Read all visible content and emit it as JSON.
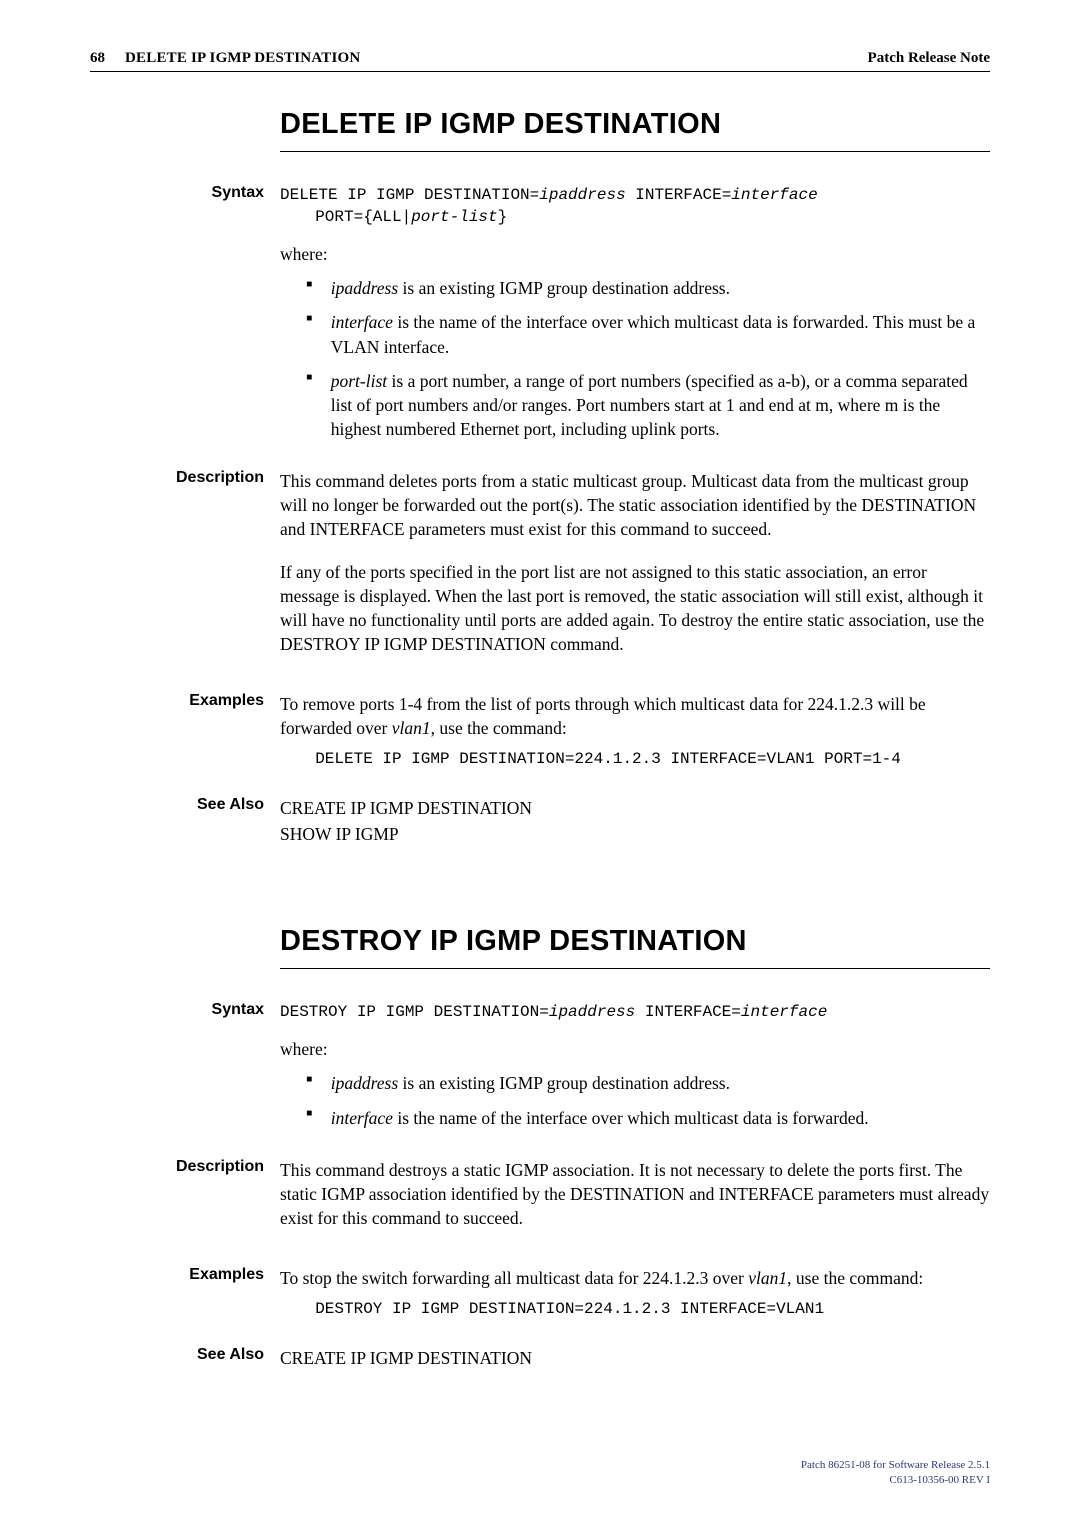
{
  "header": {
    "page_number": "68",
    "title_small": "DELETE IP IGMP DESTINATION",
    "right": "Patch Release Note"
  },
  "sections": [
    {
      "title": "DELETE IP IGMP DESTINATION",
      "syntax": {
        "label": "Syntax",
        "line1_a": "DELETE IP IGMP DESTINATION=",
        "line1_b": "ipaddress",
        "line1_c": " INTERFACE=",
        "line1_d": "interface",
        "line2_a": "PORT={ALL|",
        "line2_b": "port-list",
        "line2_c": "}",
        "where": "where:",
        "bullets": [
          {
            "i": "ipaddress",
            "t": " is an existing IGMP group destination address."
          },
          {
            "i": "interface",
            "t": " is the name of the interface over which multicast data is forwarded. This must be a VLAN interface."
          },
          {
            "i": "port-list",
            "t": " is a port number, a range of port numbers (specified as a-b), or a comma separated list of port numbers and/or ranges. Port numbers start at 1 and end at m, where m is the highest numbered Ethernet port, including uplink ports."
          }
        ]
      },
      "description": {
        "label": "Description",
        "paras": [
          "This command deletes ports from a static multicast group. Multicast data from the multicast group will no longer be forwarded out the port(s). The static association identified by the DESTINATION and INTERFACE parameters must exist for this command to succeed.",
          "If any of the ports specified in the port list are not assigned to this static association, an error message is displayed. When the last port is removed, the static association will still exist, although it will have no functionality until ports are added again. To destroy the entire static association, use the DESTROY IP IGMP DESTINATION command."
        ]
      },
      "examples": {
        "label": "Examples",
        "intro_a": "To remove ports 1-4 from the list of ports through which multicast data for 224.1.2.3 will be forwarded over ",
        "intro_i": "vlan1",
        "intro_b": ", use the command:",
        "code": "DELETE IP IGMP DESTINATION=224.1.2.3 INTERFACE=VLAN1 PORT=1-4"
      },
      "see_also": {
        "label": "See Also",
        "lines": [
          "CREATE IP IGMP DESTINATION",
          "SHOW IP IGMP"
        ]
      }
    },
    {
      "title": "DESTROY IP IGMP DESTINATION",
      "syntax": {
        "label": "Syntax",
        "line1_a": "DESTROY IP IGMP DESTINATION=",
        "line1_b": "ipaddress",
        "line1_c": " INTERFACE=",
        "line1_d": "interface",
        "where": "where:",
        "bullets": [
          {
            "i": "ipaddress",
            "t": " is an existing IGMP group destination address."
          },
          {
            "i": "interface",
            "t": " is the name of the interface over which multicast data is forwarded."
          }
        ]
      },
      "description": {
        "label": "Description",
        "paras": [
          "This command destroys a static IGMP association. It is not necessary to delete the ports first. The static IGMP association identified by the DESTINATION and INTERFACE parameters must already exist for this command to succeed."
        ]
      },
      "examples": {
        "label": "Examples",
        "intro_a": "To stop the switch forwarding all multicast data for 224.1.2.3 over ",
        "intro_i": "vlan1",
        "intro_b": ", use the command:",
        "code": "DESTROY IP IGMP DESTINATION=224.1.2.3 INTERFACE=VLAN1"
      },
      "see_also": {
        "label": "See Also",
        "lines": [
          "CREATE IP IGMP DESTINATION"
        ]
      }
    }
  ],
  "footer": {
    "line1": "Patch 86251-08 for Software Release 2.5.1",
    "line2": "C613-10356-00 REV I"
  }
}
